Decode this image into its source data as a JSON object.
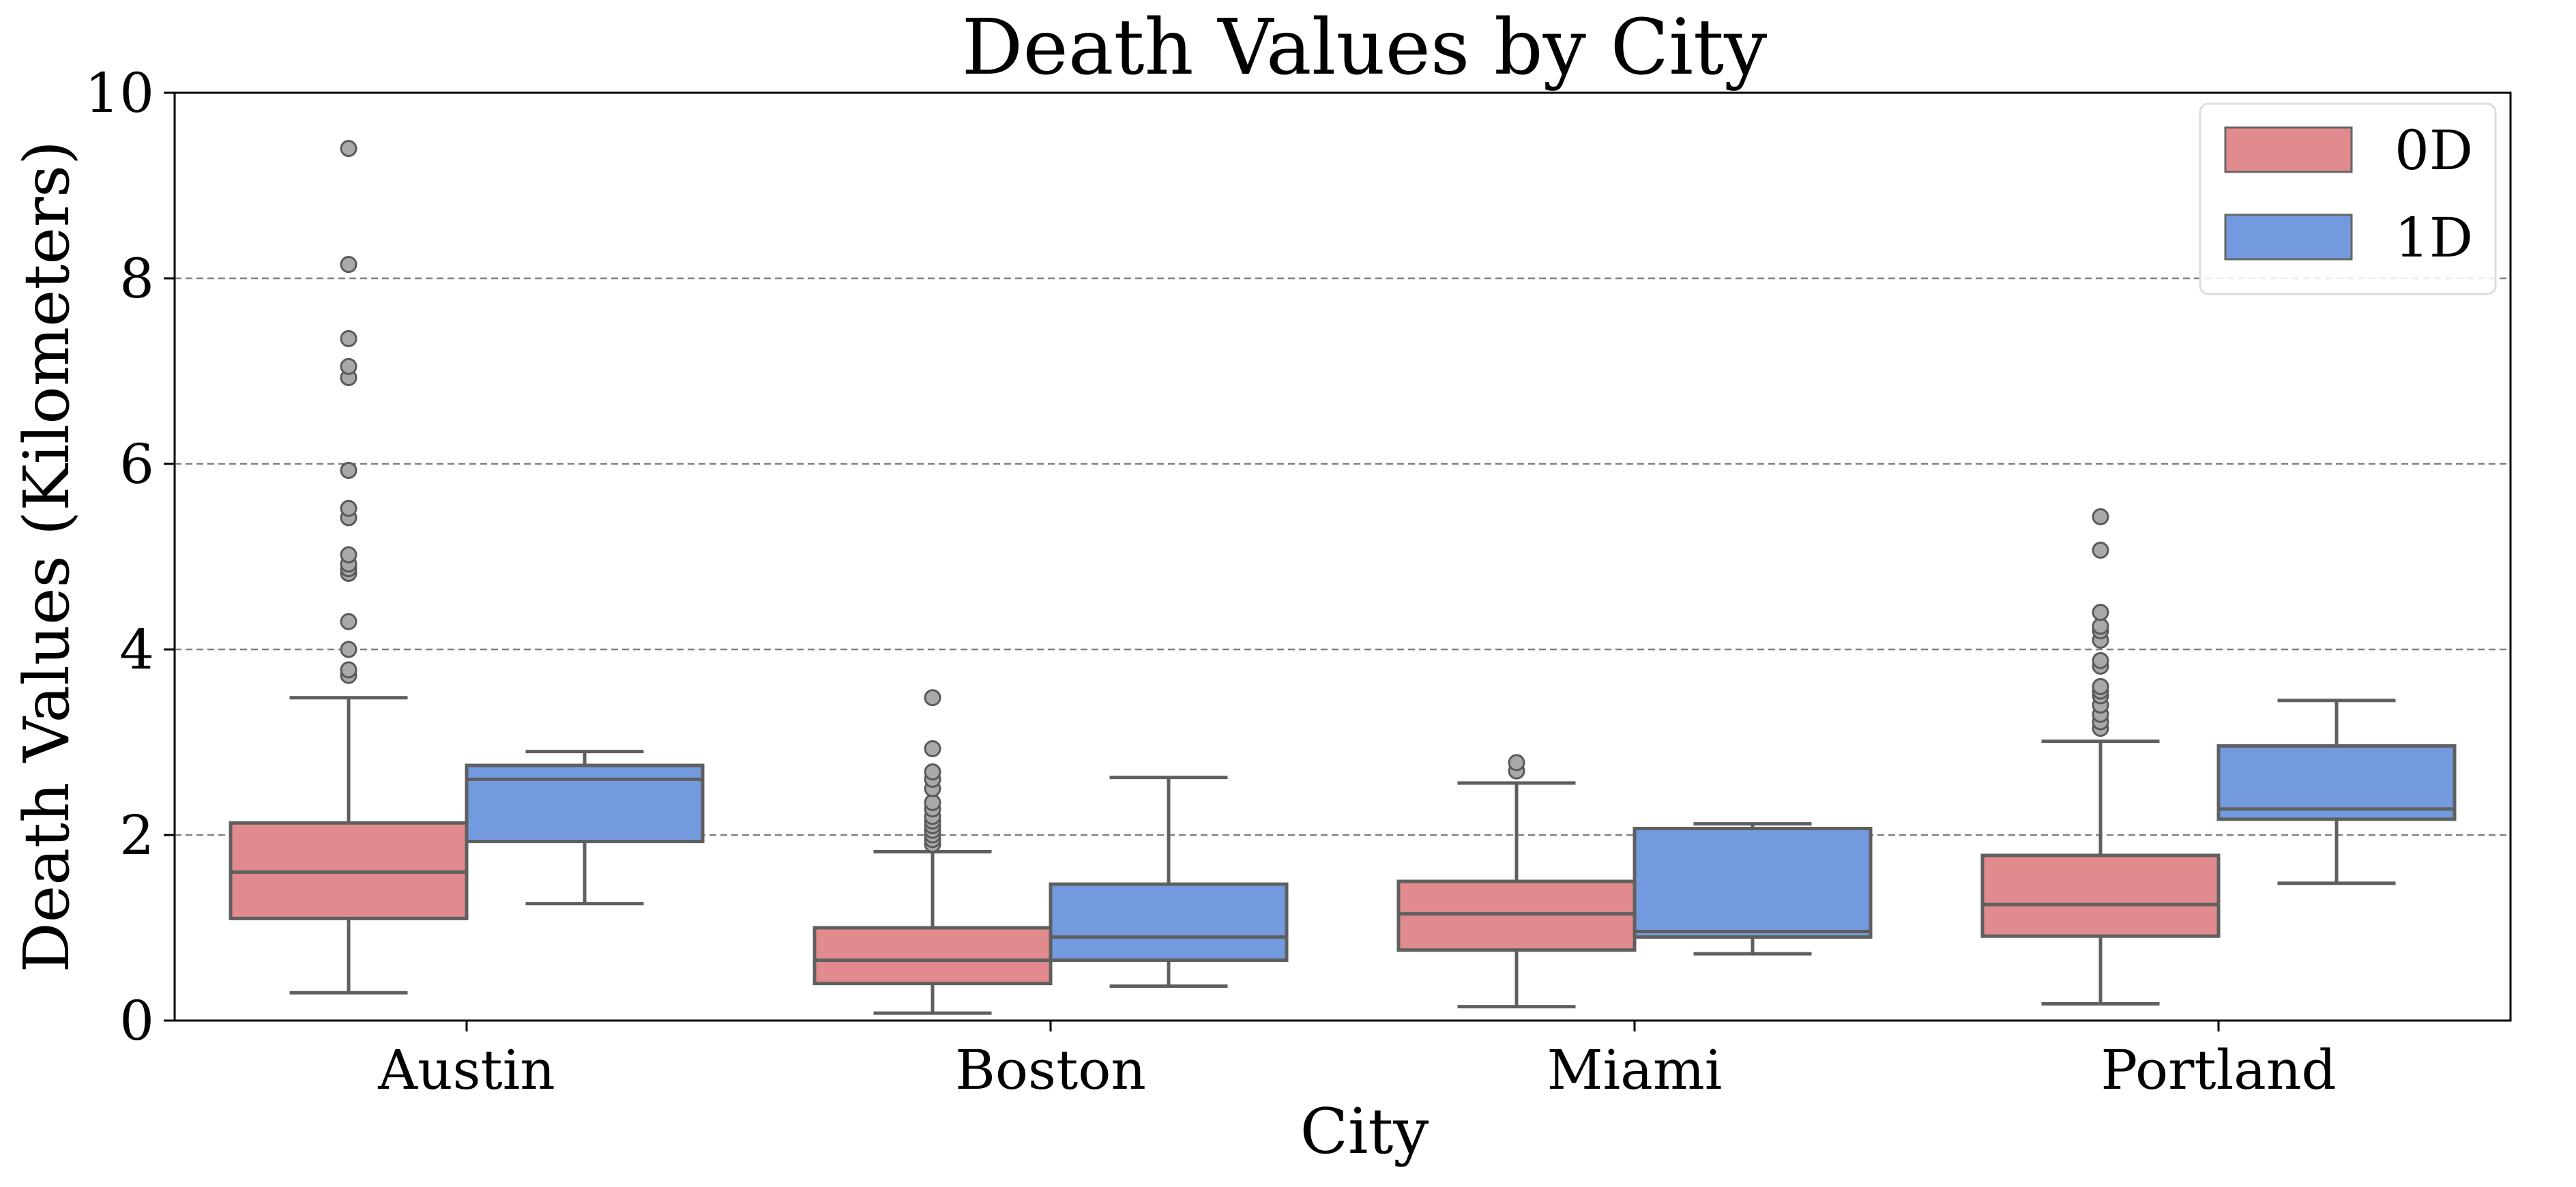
{
  "chart_data": {
    "type": "boxplot",
    "title": "Death Values by City",
    "xlabel": "City",
    "ylabel": "Death Values (Kilometers)",
    "ylim": [
      0,
      10
    ],
    "yticks": [
      0,
      2,
      4,
      6,
      8,
      10
    ],
    "grid": "y-dashed",
    "legend_position": "top-right",
    "categories": [
      "Austin",
      "Boston",
      "Miami",
      "Portland"
    ],
    "series": [
      {
        "name": "0D",
        "color": "#e28b8e",
        "boxes": [
          {
            "whisker_low": 0.3,
            "q1": 1.1,
            "median": 1.6,
            "q3": 2.13,
            "whisker_high": 3.48,
            "outliers": [
              3.72,
              3.78,
              4.0,
              4.3,
              4.82,
              4.87,
              4.92,
              5.02,
              5.42,
              5.52,
              5.93,
              6.93,
              7.05,
              7.35,
              8.15,
              9.4
            ]
          },
          {
            "whisker_low": 0.08,
            "q1": 0.4,
            "median": 0.65,
            "q3": 1.0,
            "whisker_high": 1.82,
            "outliers": [
              1.9,
              1.95,
              2.0,
              2.05,
              2.1,
              2.15,
              2.2,
              2.28,
              2.35,
              2.5,
              2.6,
              2.68,
              2.93,
              3.48
            ]
          },
          {
            "whisker_low": 0.15,
            "q1": 0.76,
            "median": 1.15,
            "q3": 1.5,
            "whisker_high": 2.56,
            "outliers": [
              2.69,
              2.78
            ]
          },
          {
            "whisker_low": 0.18,
            "q1": 0.91,
            "median": 1.25,
            "q3": 1.78,
            "whisker_high": 3.01,
            "outliers": [
              3.15,
              3.22,
              3.3,
              3.4,
              3.5,
              3.55,
              3.6,
              3.82,
              3.88,
              4.1,
              4.2,
              4.25,
              4.4,
              5.07,
              5.43
            ]
          }
        ]
      },
      {
        "name": "1D",
        "color": "#739ade",
        "boxes": [
          {
            "whisker_low": 1.26,
            "q1": 1.93,
            "median": 2.6,
            "q3": 2.75,
            "whisker_high": 2.9,
            "outliers": []
          },
          {
            "whisker_low": 0.37,
            "q1": 0.65,
            "median": 0.9,
            "q3": 1.47,
            "whisker_high": 2.62,
            "outliers": []
          },
          {
            "whisker_low": 0.72,
            "q1": 0.9,
            "median": 0.96,
            "q3": 2.07,
            "whisker_high": 2.12,
            "outliers": []
          },
          {
            "whisker_low": 1.48,
            "q1": 2.17,
            "median": 2.28,
            "q3": 2.96,
            "whisker_high": 3.45,
            "outliers": []
          }
        ]
      }
    ]
  }
}
